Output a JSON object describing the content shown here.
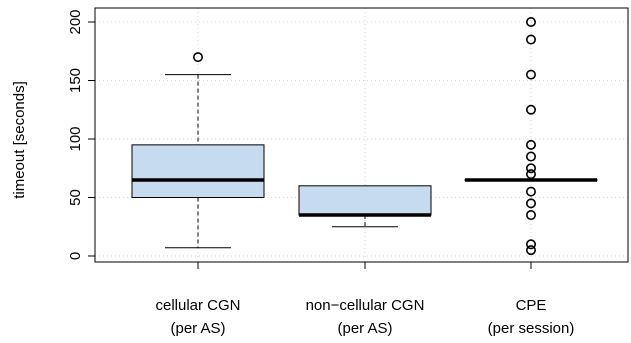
{
  "chart_data": {
    "type": "boxplot",
    "ylabel": "timeout [seconds]",
    "ylim": [
      0,
      200
    ],
    "yticks": [
      0,
      50,
      100,
      150,
      200
    ],
    "grid": true,
    "box_color": "#c6dbef",
    "categories": [
      {
        "line1": "cellular CGN",
        "line2": "(per AS)"
      },
      {
        "line1": "non−cellular CGN",
        "line2": "(per AS)"
      },
      {
        "line1": "CPE",
        "line2": "(per session)"
      }
    ],
    "boxes": [
      {
        "whisker_low": 7,
        "q1": 50,
        "median": 65,
        "q3": 95,
        "whisker_high": 155,
        "outliers": [
          170
        ]
      },
      {
        "whisker_low": 25,
        "q1": 35,
        "median": 35,
        "q3": 60,
        "whisker_high": 60,
        "outliers": []
      },
      {
        "whisker_low": 65,
        "q1": 65,
        "median": 65,
        "q3": 65,
        "whisker_high": 65,
        "outliers": [
          200,
          185,
          155,
          125,
          95,
          85,
          75,
          70,
          55,
          45,
          35,
          10,
          5
        ]
      }
    ]
  }
}
